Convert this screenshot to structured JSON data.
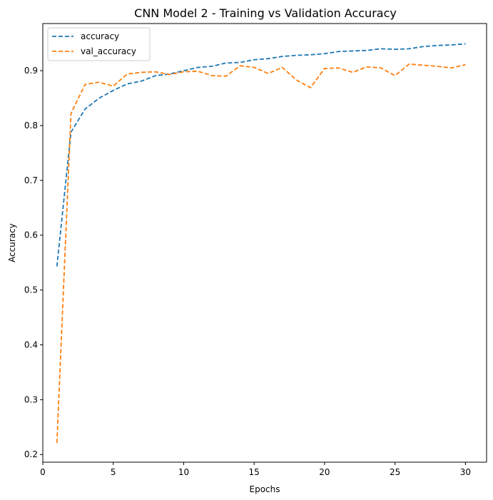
{
  "chart_data": {
    "type": "line",
    "title": "CNN Model 2 - Training vs Validation Accuracy",
    "xlabel": "Epochs",
    "ylabel": "Accuracy",
    "xlim": [
      0.0,
      31.5
    ],
    "ylim": [
      0.186,
      0.986
    ],
    "xticks": [
      0,
      5,
      10,
      15,
      20,
      25,
      30
    ],
    "yticks": [
      0.2,
      0.3,
      0.4,
      0.5,
      0.6,
      0.7,
      0.8,
      0.9
    ],
    "grid": false,
    "legend_position": "top-left",
    "x": [
      1,
      2,
      3,
      4,
      5,
      6,
      7,
      8,
      9,
      10,
      11,
      12,
      13,
      14,
      15,
      16,
      17,
      18,
      19,
      20,
      21,
      22,
      23,
      24,
      25,
      26,
      27,
      28,
      29,
      30
    ],
    "series": [
      {
        "name": "accuracy",
        "color": "#1f77b4",
        "style": "dashed",
        "values": [
          0.543,
          0.788,
          0.83,
          0.85,
          0.864,
          0.876,
          0.881,
          0.891,
          0.894,
          0.9,
          0.906,
          0.908,
          0.914,
          0.915,
          0.92,
          0.922,
          0.926,
          0.928,
          0.929,
          0.931,
          0.935,
          0.936,
          0.937,
          0.94,
          0.939,
          0.94,
          0.944,
          0.946,
          0.947,
          0.949
        ]
      },
      {
        "name": "val_accuracy",
        "color": "#ff7f0e",
        "style": "dashed",
        "values": [
          0.221,
          0.822,
          0.875,
          0.879,
          0.872,
          0.894,
          0.897,
          0.898,
          0.893,
          0.898,
          0.899,
          0.891,
          0.89,
          0.909,
          0.906,
          0.895,
          0.906,
          0.883,
          0.869,
          0.904,
          0.905,
          0.897,
          0.907,
          0.905,
          0.891,
          0.912,
          0.91,
          0.908,
          0.905,
          0.911
        ]
      }
    ]
  }
}
